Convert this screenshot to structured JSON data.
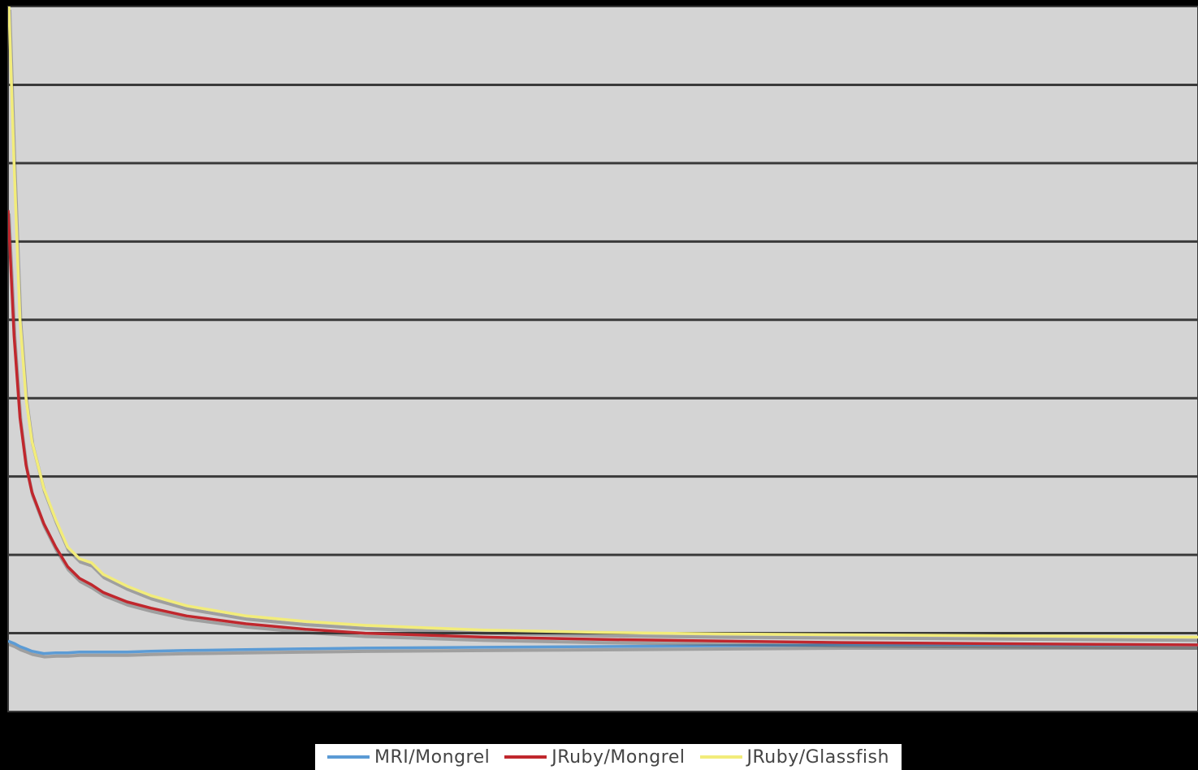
{
  "chart_data": {
    "type": "line",
    "title": "",
    "xlabel": "",
    "ylabel": "",
    "xlim": [
      0,
      100
    ],
    "ylim": [
      -1,
      8
    ],
    "grid": true,
    "legend_position": "bottom-center",
    "colors": {
      "background": "#000000",
      "plot_area": "#d4d4d4",
      "gridline": "#3a3a3a"
    },
    "x": [
      0,
      0.5,
      1,
      1.5,
      2,
      3,
      4,
      5,
      6,
      7,
      8,
      10,
      12,
      15,
      20,
      25,
      30,
      40,
      50,
      60,
      70,
      80,
      90,
      100
    ],
    "series": [
      {
        "name": "MRI/Mongrel",
        "color": "#5b9bd5",
        "values": [
          -0.1,
          -0.13,
          -0.17,
          -0.2,
          -0.23,
          -0.26,
          -0.25,
          -0.25,
          -0.24,
          -0.24,
          -0.24,
          -0.24,
          -0.23,
          -0.22,
          -0.21,
          -0.2,
          -0.19,
          -0.18,
          -0.17,
          -0.16,
          -0.15,
          -0.15,
          -0.15,
          -0.15
        ]
      },
      {
        "name": "JRuby/Mongrel",
        "color": "#c0272d",
        "values": [
          5.4,
          3.8,
          2.75,
          2.15,
          1.8,
          1.4,
          1.1,
          0.85,
          0.7,
          0.62,
          0.52,
          0.4,
          0.32,
          0.22,
          0.12,
          0.05,
          0.0,
          -0.05,
          -0.08,
          -0.1,
          -0.12,
          -0.13,
          -0.14,
          -0.15
        ]
      },
      {
        "name": "JRuby/Glassfish",
        "color": "#f2ec7a",
        "values": [
          8.3,
          6.0,
          4.0,
          3.0,
          2.45,
          1.85,
          1.45,
          1.1,
          0.95,
          0.9,
          0.75,
          0.6,
          0.48,
          0.35,
          0.22,
          0.15,
          0.1,
          0.04,
          0.01,
          -0.01,
          -0.02,
          -0.03,
          -0.04,
          -0.05
        ]
      }
    ]
  }
}
